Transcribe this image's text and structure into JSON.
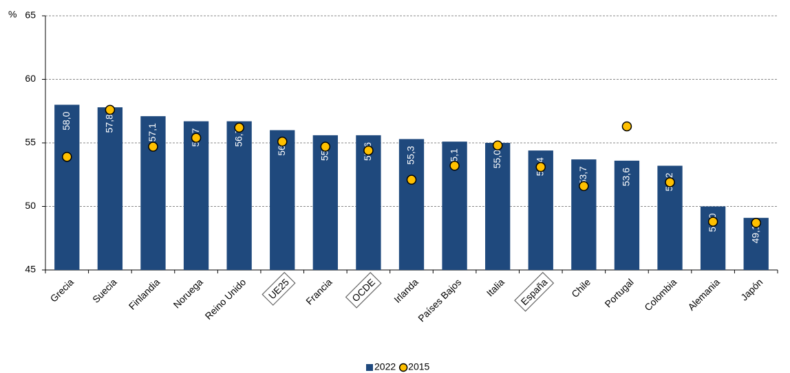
{
  "chart_data": {
    "type": "bar",
    "y_label": "%",
    "categories": [
      "Grecia",
      "Suecia",
      "Finlandia",
      "Noruega",
      "Reino Unido",
      "UE25",
      "Francia",
      "OCDE",
      "Irlanda",
      "Países Bajos",
      "Italia",
      "España",
      "Chile",
      "Portugal",
      "Colombia",
      "Alemania",
      "Japón"
    ],
    "highlighted": [
      5,
      7,
      11
    ],
    "series": [
      {
        "name": "2022",
        "kind": "bar",
        "color": "#1f497d",
        "values": [
          58.0,
          57.8,
          57.1,
          56.7,
          56.7,
          56.0,
          55.6,
          55.6,
          55.3,
          55.1,
          55.0,
          54.4,
          53.7,
          53.6,
          53.2,
          50.0,
          49.1
        ],
        "value_labels": [
          "58,0",
          "57,8",
          "57,1",
          "56,7",
          "56,7",
          "56,0",
          "55,6",
          "55,6",
          "55,3",
          "55,1",
          "55,0",
          "54,4",
          "53,7",
          "53,6",
          "53,2",
          "50,0",
          "49,1"
        ]
      },
      {
        "name": "2015",
        "kind": "dot",
        "color": "#ffc000",
        "values": [
          53.9,
          57.6,
          54.7,
          55.4,
          56.2,
          55.1,
          54.7,
          54.4,
          52.1,
          53.2,
          54.8,
          53.1,
          51.6,
          56.3,
          51.9,
          48.8,
          48.7
        ]
      }
    ],
    "ylim": [
      45,
      65
    ],
    "yticks": [
      45,
      50,
      55,
      60,
      65
    ],
    "grid": true,
    "legend": "bottom"
  }
}
